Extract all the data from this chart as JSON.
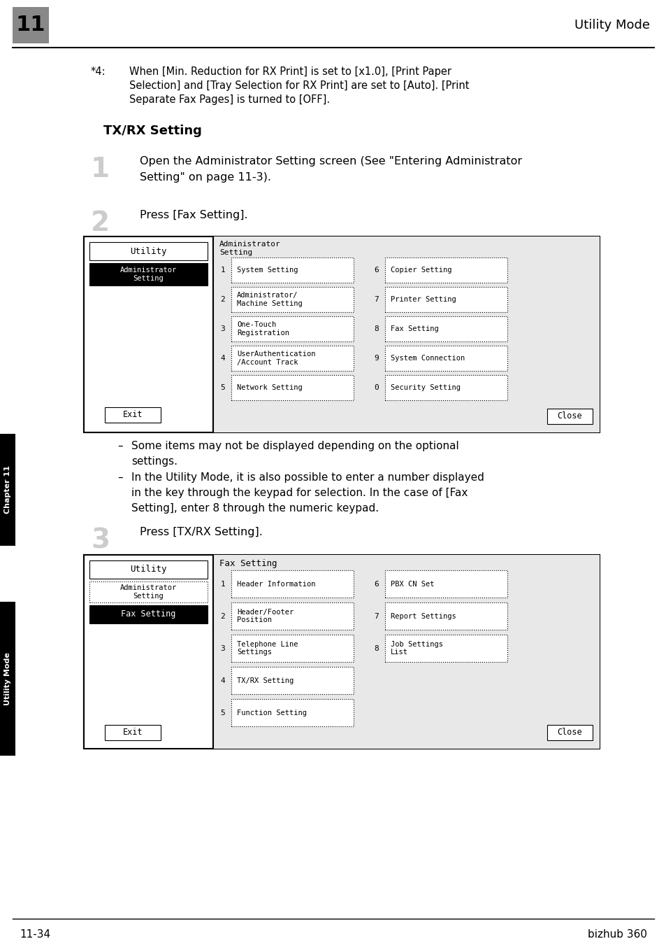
{
  "page_bg": "#ffffff",
  "header_text": "Utility Mode",
  "header_number": "11",
  "header_number_bg": "#888888",
  "footer_left": "11-34",
  "footer_right": "bizhub 360",
  "section_title": "TX/RX Setting",
  "step1_num": "1",
  "step1_line1": "Open the Administrator Setting screen (See \"Entering Administrator",
  "step1_line2": "Setting\" on page 11-3).",
  "step2_num": "2",
  "step2_text": "Press [Fax Setting].",
  "step3_num": "3",
  "step3_text": "Press [TX/RX Setting].",
  "sidebar_top": "Chapter 11",
  "sidebar_bottom": "Utility Mode",
  "footnote_line1": "*4:   When [Min. Reduction for RX Print] is set to [x1.0], [Print Paper",
  "footnote_line2": "      Selection] and [Tray Selection for RX Print] are set to [Auto]. [Print",
  "footnote_line3": "      Separate Fax Pages] is turned to [OFF].",
  "screen1_title": "Administrator\nSetting",
  "screen1_items_left": [
    [
      "1",
      "System Setting"
    ],
    [
      "2",
      "Administrator/\nMachine Setting"
    ],
    [
      "3",
      "One-Touch\nRegistration"
    ],
    [
      "4",
      "UserAuthentication\n/Account Track"
    ],
    [
      "5",
      "Network Setting"
    ]
  ],
  "screen1_items_right": [
    [
      "6",
      "Copier Setting"
    ],
    [
      "7",
      "Printer Setting"
    ],
    [
      "8",
      "Fax Setting"
    ],
    [
      "9",
      "System Connection"
    ],
    [
      "0",
      "Security Setting"
    ]
  ],
  "screen2_title": "Fax Setting",
  "screen2_items_left": [
    [
      "1",
      "Header Information"
    ],
    [
      "2",
      "Header/Footer\nPosition"
    ],
    [
      "3",
      "Telephone Line\nSettings"
    ],
    [
      "4",
      "TX/RX Setting"
    ],
    [
      "5",
      "Function Setting"
    ]
  ],
  "screen2_items_right": [
    [
      "6",
      "PBX CN Set"
    ],
    [
      "7",
      "Report Settings"
    ],
    [
      "8",
      "Job Settings\nList"
    ]
  ],
  "bullet1_line1": "Some items may not be displayed depending on the optional",
  "bullet1_line2": "settings.",
  "bullet2_line1": "In the Utility Mode, it is also possible to enter a number displayed",
  "bullet2_line2": "in the key through the keypad for selection. In the case of [Fax",
  "bullet2_line3": "Setting], enter 8 through the numeric keypad."
}
